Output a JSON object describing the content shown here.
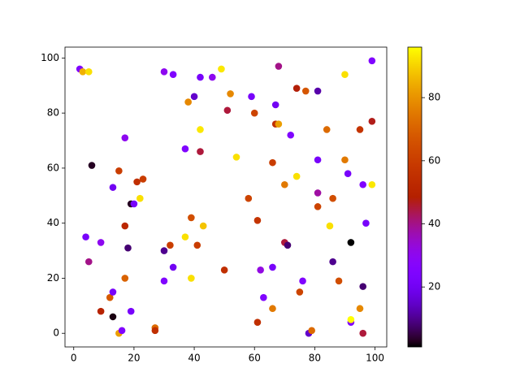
{
  "chart_data": {
    "type": "scatter",
    "x": [
      2,
      3,
      5,
      6,
      4,
      5,
      9,
      9,
      12,
      13,
      13,
      13,
      15,
      15,
      16,
      17,
      17,
      17,
      18,
      19,
      20,
      19,
      21,
      22,
      23,
      27,
      27,
      30,
      30,
      30,
      32,
      33,
      33,
      37,
      37,
      38,
      39,
      39,
      40,
      41,
      42,
      42,
      42,
      43,
      46,
      49,
      50,
      51,
      52,
      54,
      58,
      59,
      60,
      61,
      61,
      62,
      63,
      66,
      66,
      66,
      67,
      67,
      68,
      68,
      70,
      70,
      71,
      72,
      74,
      74,
      75,
      76,
      77,
      78,
      79,
      81,
      81,
      81,
      81,
      84,
      85,
      86,
      86,
      88,
      90,
      90,
      91,
      92,
      92,
      92,
      95,
      95,
      96,
      96,
      96,
      97,
      99,
      99,
      99
    ],
    "values": [
      96,
      95,
      95,
      61,
      35,
      26,
      33,
      8,
      13,
      15,
      6,
      53,
      59,
      0,
      1,
      71,
      39,
      20,
      31,
      47,
      47,
      8,
      55,
      49,
      56,
      2,
      1,
      95,
      30,
      19,
      32,
      94,
      24,
      35,
      67,
      84,
      42,
      20,
      86,
      32,
      93,
      74,
      66,
      39,
      93,
      96,
      23,
      81,
      87,
      64,
      49,
      86,
      80,
      41,
      4,
      23,
      13,
      62,
      24,
      9,
      83,
      76,
      76,
      97,
      54,
      33,
      32,
      72,
      89,
      57,
      15,
      19,
      88,
      0,
      1,
      88,
      51,
      63,
      46,
      74,
      39,
      49,
      26,
      19,
      94,
      63,
      58,
      33,
      4,
      5,
      74,
      9,
      54,
      17,
      0,
      40,
      99,
      77,
      54
    ],
    "color_values": [
      25,
      85,
      92,
      3,
      22,
      40,
      30,
      50,
      68,
      22,
      2,
      20,
      60,
      82,
      25,
      30,
      52,
      70,
      8,
      3,
      22,
      22,
      55,
      92,
      60,
      72,
      55,
      30,
      10,
      25,
      60,
      25,
      20,
      92,
      25,
      78,
      65,
      92,
      15,
      60,
      22,
      93,
      45,
      88,
      30,
      93,
      55,
      45,
      78,
      92,
      62,
      22,
      62,
      57,
      55,
      32,
      25,
      60,
      22,
      75,
      20,
      55,
      82,
      40,
      75,
      45,
      8,
      25,
      48,
      92,
      62,
      25,
      67,
      15,
      72,
      12,
      38,
      22,
      62,
      72,
      92,
      65,
      10,
      65,
      92,
      75,
      22,
      1,
      25,
      96,
      57,
      78,
      25,
      8,
      45,
      22,
      25,
      47,
      93
    ],
    "colormap": "gnuplot",
    "xlim": [
      -2.9,
      103.9
    ],
    "xticks": [
      0,
      20,
      40,
      60,
      80,
      100
    ],
    "ylim": [
      -4.95,
      103.95
    ],
    "yticks": [
      0,
      20,
      40,
      60,
      80,
      100
    ],
    "clim": [
      1,
      96
    ],
    "cticks": [
      20,
      40,
      60,
      80
    ]
  }
}
